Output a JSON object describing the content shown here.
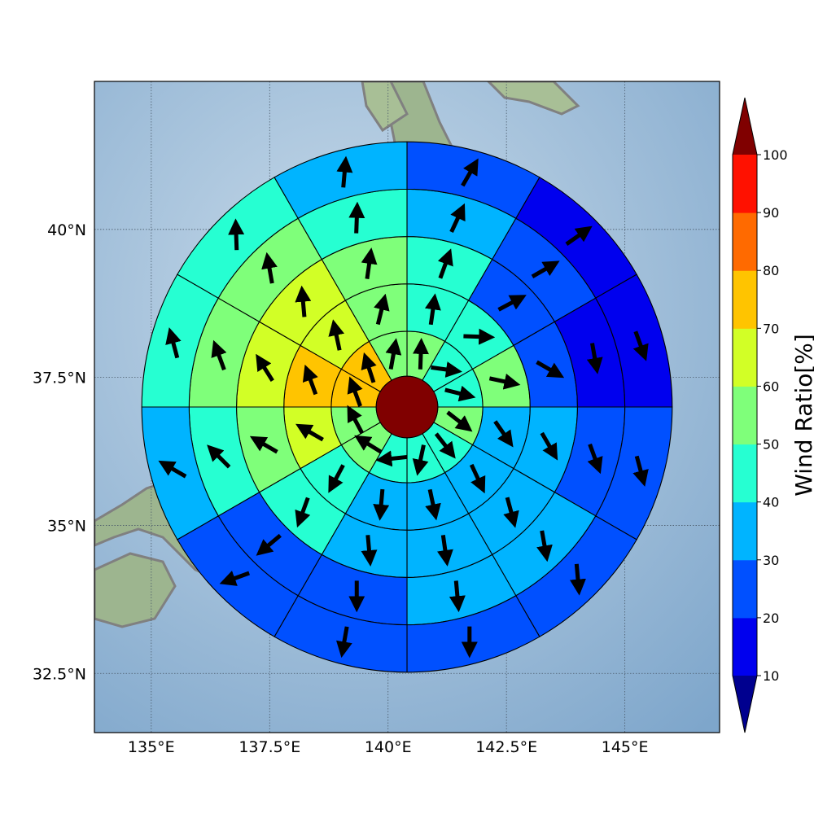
{
  "map": {
    "lon_range": [
      133.8,
      147.0
    ],
    "lat_range": [
      31.5,
      42.5
    ],
    "center": {
      "lon": 140.4,
      "lat": 37.0
    },
    "center_value": 100,
    "ring_radii_deg": [
      0.65,
      1.6,
      2.6,
      3.6,
      4.6,
      5.6
    ],
    "sector_count": 12,
    "gridlines": true
  },
  "axes": {
    "x_ticks": [
      {
        "value": 135,
        "label": "135°E"
      },
      {
        "value": 137.5,
        "label": "137.5°E"
      },
      {
        "value": 140,
        "label": "140°E"
      },
      {
        "value": 142.5,
        "label": "142.5°E"
      },
      {
        "value": 145,
        "label": "145°E"
      }
    ],
    "y_ticks": [
      {
        "value": 40,
        "label": "40°N"
      },
      {
        "value": 37.5,
        "label": "37.5°N"
      },
      {
        "value": 35,
        "label": "35°N"
      },
      {
        "value": 32.5,
        "label": "32.5°N"
      }
    ]
  },
  "colorbar": {
    "title": "Wind Ratio[%]",
    "extend": "both",
    "ticks": [
      10,
      20,
      30,
      40,
      50,
      60,
      70,
      80,
      90,
      100
    ],
    "colors": [
      {
        "range": [
          0,
          10
        ],
        "color": "#00008f"
      },
      {
        "range": [
          10,
          20
        ],
        "color": "#0000ee"
      },
      {
        "range": [
          20,
          30
        ],
        "color": "#0050ff"
      },
      {
        "range": [
          30,
          40
        ],
        "color": "#00b4ff"
      },
      {
        "range": [
          40,
          50
        ],
        "color": "#26ffd2"
      },
      {
        "range": [
          50,
          60
        ],
        "color": "#7fff7a"
      },
      {
        "range": [
          60,
          70
        ],
        "color": "#d2ff26"
      },
      {
        "range": [
          70,
          80
        ],
        "color": "#ffc400"
      },
      {
        "range": [
          80,
          90
        ],
        "color": "#ff6a00"
      },
      {
        "range": [
          90,
          100
        ],
        "color": "#ff1100"
      },
      {
        "range": [
          100,
          110
        ],
        "color": "#800000"
      }
    ]
  },
  "chart_data": {
    "type": "heatmap",
    "description_axes": "polar sectors (ring index from center outward, sector index clockwise from north, each 30°)",
    "rings": [
      {
        "ring": 1,
        "values": [
          55,
          45,
          45,
          55,
          45,
          45,
          45,
          55,
          55,
          75,
          75,
          55
        ],
        "wind_dir_deg": [
          2,
          98,
          104,
          128,
          142,
          192,
          264,
          302,
          332,
          340,
          342,
          10
        ]
      },
      {
        "ring": 2,
        "values": [
          45,
          45,
          55,
          35,
          35,
          35,
          35,
          45,
          65,
          75,
          65,
          55
        ],
        "wind_dir_deg": [
          8,
          92,
          102,
          145,
          155,
          168,
          185,
          208,
          300,
          340,
          348,
          14
        ]
      },
      {
        "ring": 3,
        "values": [
          45,
          25,
          25,
          35,
          35,
          35,
          35,
          45,
          55,
          65,
          65,
          55
        ],
        "wind_dir_deg": [
          20,
          62,
          120,
          150,
          165,
          172,
          175,
          200,
          300,
          328,
          355,
          8
        ]
      },
      {
        "ring": 4,
        "values": [
          35,
          25,
          15,
          25,
          35,
          35,
          25,
          25,
          45,
          55,
          55,
          45
        ],
        "wind_dir_deg": [
          25,
          60,
          170,
          160,
          170,
          175,
          180,
          230,
          315,
          340,
          350,
          2
        ]
      },
      {
        "ring": 5,
        "values": [
          25,
          15,
          15,
          25,
          25,
          25,
          25,
          25,
          35,
          45,
          45,
          35
        ],
        "wind_dir_deg": [
          30,
          55,
          160,
          165,
          175,
          180,
          190,
          250,
          300,
          345,
          358,
          5
        ]
      }
    ]
  }
}
